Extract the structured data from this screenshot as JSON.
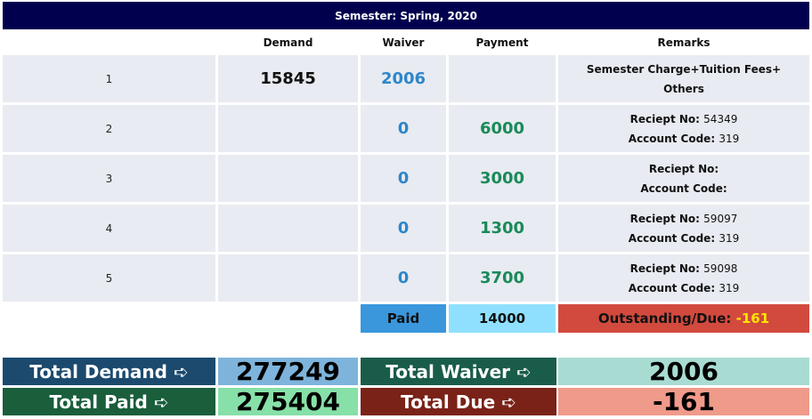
{
  "semester_label": "Semester: Spring, 2020",
  "headers": {
    "sl": "",
    "demand": "Demand",
    "waiver": "Waiver",
    "payment": "Payment",
    "remarks": "Remarks"
  },
  "rows": [
    {
      "sl": "1",
      "demand": "15845",
      "waiver": "2006",
      "payment": "",
      "remarks_line1": "Semester Charge+Tuition Fees+",
      "remarks_line2": "Others",
      "receipt_no": "",
      "account_code": ""
    },
    {
      "sl": "2",
      "demand": "",
      "waiver": "0",
      "payment": "6000",
      "receipt_label": "Reciept No:",
      "receipt_no": "54349",
      "account_label": "Account Code:",
      "account_code": "319"
    },
    {
      "sl": "3",
      "demand": "",
      "waiver": "0",
      "payment": "3000",
      "receipt_label": "Reciept No:",
      "receipt_no": "",
      "account_label": "Account Code:",
      "account_code": ""
    },
    {
      "sl": "4",
      "demand": "",
      "waiver": "0",
      "payment": "1300",
      "receipt_label": "Reciept No:",
      "receipt_no": "59097",
      "account_label": "Account Code:",
      "account_code": "319"
    },
    {
      "sl": "5",
      "demand": "",
      "waiver": "0",
      "payment": "3700",
      "receipt_label": "Reciept No:",
      "receipt_no": "59098",
      "account_label": "Account Code:",
      "account_code": "319"
    }
  ],
  "summary": {
    "paid_label": "Paid",
    "paid_value": "14000",
    "outstanding_label": "Outstanding/Due:",
    "outstanding_value": "-161"
  },
  "totals": {
    "total_demand_label": "Total Demand ➪",
    "total_demand_value": "277249",
    "total_waiver_label": "Total Waiver ➪",
    "total_waiver_value": "2006",
    "total_paid_label": "Total Paid ➪",
    "total_paid_value": "275404",
    "total_due_label": "Total Due ➪",
    "total_due_value": "-161"
  },
  "colors": {
    "banner": "#00004f",
    "paid_bg": "#3a97dc",
    "paid_value_bg": "#8fe0ff",
    "outstanding_bg": "#d24a3e",
    "outstanding_value": "#ffe600",
    "total_demand_label_bg": "#1b4a6e",
    "total_demand_value_bg": "#7eb4dc",
    "total_waiver_label_bg": "#1a5c4a",
    "total_waiver_value_bg": "#a8dcd2",
    "total_paid_label_bg": "#1a5e3c",
    "total_paid_value_bg": "#86e0a8",
    "total_due_label_bg": "#7a2218",
    "total_due_value_bg": "#f09a8a"
  }
}
